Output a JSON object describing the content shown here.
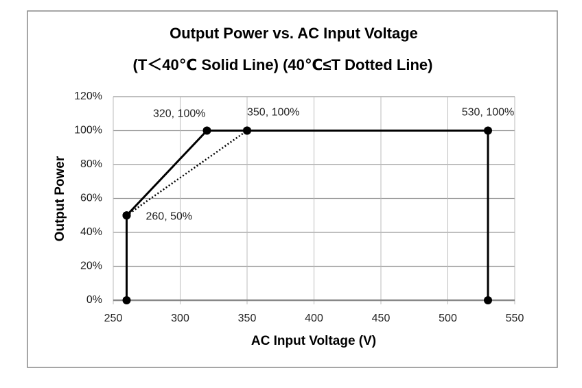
{
  "chart_data": {
    "type": "line",
    "title": "Output Power vs. AC Input Voltage",
    "subtitle": "(T＜40℃ Solid Line) (40℃≤T Dotted Line)",
    "x_label": "AC Input Voltage (V)",
    "y_label": "Output Power",
    "xlim": [
      250,
      550
    ],
    "xticks": [
      250,
      300,
      350,
      400,
      450,
      500,
      550
    ],
    "ylim": [
      0,
      120
    ],
    "yticks": [
      {
        "value": 0,
        "label": "0%"
      },
      {
        "value": 20,
        "label": "20%"
      },
      {
        "value": 40,
        "label": "40%"
      },
      {
        "value": 60,
        "label": "60%"
      },
      {
        "value": 80,
        "label": "80%"
      },
      {
        "value": 100,
        "label": "100%"
      },
      {
        "value": 120,
        "label": "120%"
      }
    ],
    "grid": true,
    "series": [
      {
        "x": [
          260,
          260,
          320,
          350,
          530,
          530
        ],
        "values": [
          0,
          50,
          100,
          100,
          100,
          0
        ],
        "color": "#000000",
        "line_style": "solid"
      },
      {
        "x": [
          260,
          350
        ],
        "values": [
          50,
          100
        ],
        "color": "#000000",
        "line_style": "dotted"
      }
    ],
    "annotations": [
      {
        "text": "320, 100%",
        "x": 320,
        "y": 100
      },
      {
        "text": "350, 100%",
        "x": 350,
        "y": 100
      },
      {
        "text": "530, 100%",
        "x": 530,
        "y": 100
      },
      {
        "text": "260, 50%",
        "x": 260,
        "y": 50
      }
    ]
  }
}
